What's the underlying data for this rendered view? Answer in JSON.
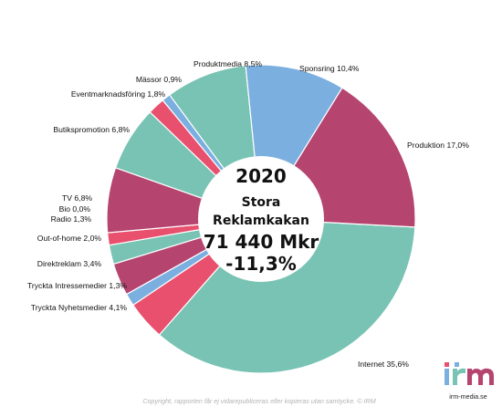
{
  "chart_data": {
    "type": "pie",
    "center": {
      "year": "2020",
      "line1": "Stora",
      "line2": "Reklamkakan",
      "total": "71 440 Mkr",
      "change": "-11,3%"
    },
    "slices": [
      {
        "label": "Internet 35,6%",
        "value": 35.6,
        "color": "#78c3b3"
      },
      {
        "label": "Tryckta Nyhetsmedier 4,1%",
        "value": 4.1,
        "color": "#e8506e"
      },
      {
        "label": "Tryckta Intressemedier 1,3%",
        "value": 1.3,
        "color": "#7bafe0"
      },
      {
        "label": "Direktreklam 3,4%",
        "value": 3.4,
        "color": "#b5446f"
      },
      {
        "label": "Out-of-home 2,0%",
        "value": 2.0,
        "color": "#78c3b3"
      },
      {
        "label": "Radio 1,3%",
        "value": 1.3,
        "color": "#e8506e"
      },
      {
        "label": "Bio 0,0%",
        "value": 0.0,
        "color": "#7bafe0"
      },
      {
        "label": "TV 6,8%",
        "value": 6.8,
        "color": "#b5446f"
      },
      {
        "label": "Butikspromotion 6,8%",
        "value": 6.8,
        "color": "#78c3b3"
      },
      {
        "label": "Eventmarknadsföring 1,8%",
        "value": 1.8,
        "color": "#e8506e"
      },
      {
        "label": "Mässor 0,9%",
        "value": 0.9,
        "color": "#7bafe0"
      },
      {
        "label": "Produktmedia 8,5%",
        "value": 8.5,
        "color": "#78c3b3"
      },
      {
        "label": "Sponsring 10,4%",
        "value": 10.4,
        "color": "#7bafe0"
      },
      {
        "label": "Produktion 17,0%",
        "value": 17.0,
        "color": "#b5446f"
      }
    ]
  },
  "footer": {
    "copyright": "Copyright, rapporten får ej vidarepubliceras eller kopieras utan samtycke. © IRM",
    "logo_url": "irm-media.se"
  },
  "logo": {
    "letters": [
      "i",
      "r",
      "m"
    ],
    "colors": [
      "#7bafe0",
      "#e8506e",
      "#78c3b3",
      "#b5446f"
    ]
  }
}
